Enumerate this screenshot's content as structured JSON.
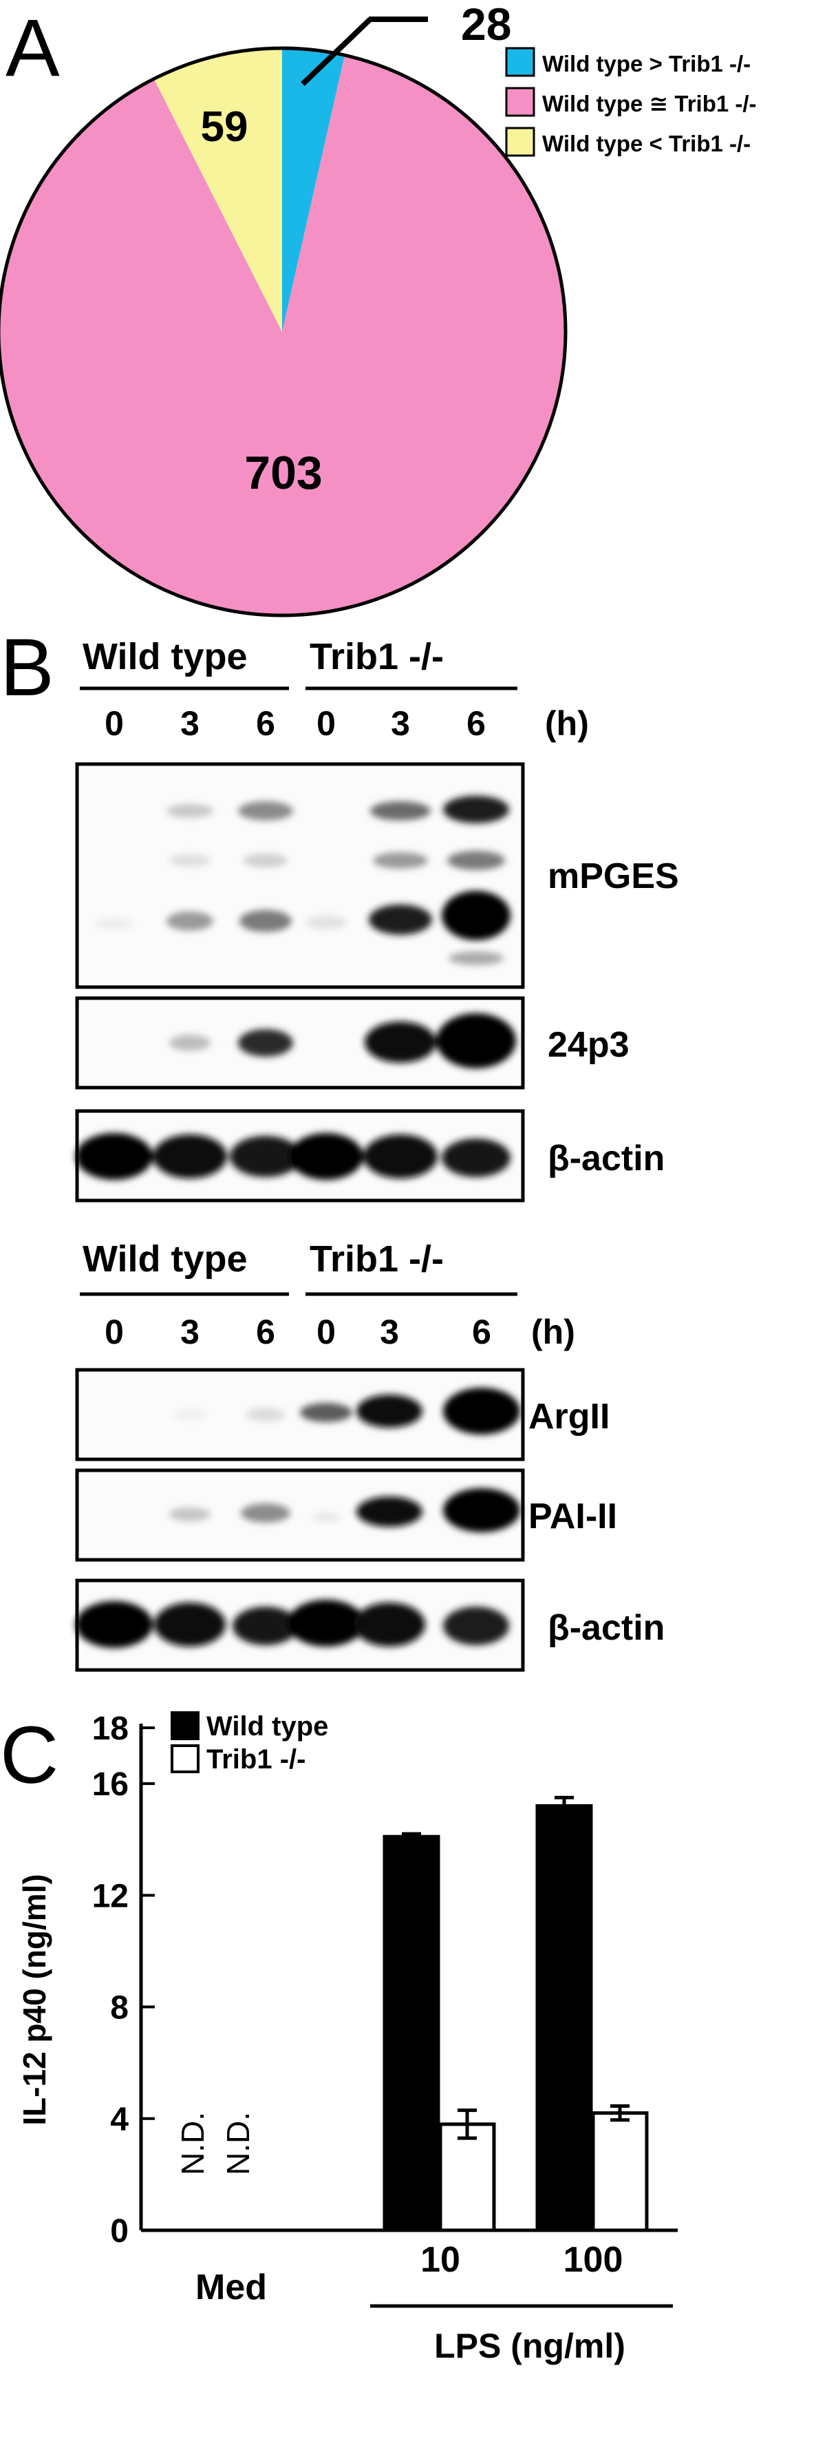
{
  "panel_a": {
    "letter": "A",
    "chart_data": {
      "type": "pie",
      "slices": [
        {
          "label": "Wild type > Trib1 -/-",
          "value": 28,
          "color": "#1ab8e8"
        },
        {
          "label": "Wild type ≅ Trib1 -/-",
          "value": 703,
          "color": "#f590c4"
        },
        {
          "label": "Wild type < Trib1 -/-",
          "value": 59,
          "color": "#f8f49c"
        }
      ],
      "data_labels": [
        "28",
        "703",
        "59"
      ],
      "legend_position": "top-right"
    }
  },
  "panel_b": {
    "letter": "B",
    "top": {
      "groups": [
        "Wild type",
        "Trib1 -/-"
      ],
      "timepoints": [
        "0",
        "3",
        "6",
        "0",
        "3",
        "6"
      ],
      "unit": "(h)",
      "blots": [
        "mPGES",
        "24p3",
        "β-actin"
      ]
    },
    "bottom": {
      "groups": [
        "Wild type",
        "Trib1 -/-"
      ],
      "timepoints": [
        "0",
        "3",
        "6",
        "0",
        "3",
        "6"
      ],
      "unit": "(h)",
      "blots": [
        "ArgII",
        "PAI-II",
        "β-actin"
      ]
    }
  },
  "panel_c": {
    "letter": "C",
    "chart_data": {
      "type": "bar",
      "categories": [
        "Med",
        "10",
        "100"
      ],
      "group_label": "LPS (ng/ml)",
      "ylabel": "IL-12 p40 (ng/ml)",
      "ylim": [
        0,
        18
      ],
      "yticks": [
        "0",
        "4",
        "8",
        "12",
        "16",
        "18"
      ],
      "series": [
        {
          "name": "Wild type",
          "color": "#000000",
          "values": [
            null,
            14.1,
            15.2
          ],
          "errors": [
            null,
            0.1,
            0.3
          ]
        },
        {
          "name": "Trib1 -/-",
          "color": "#ffffff",
          "values": [
            null,
            3.8,
            4.2
          ],
          "errors": [
            null,
            0.5,
            0.25
          ]
        }
      ],
      "annotations": [
        "N.D.",
        "N.D."
      ],
      "legend_position": "top-left"
    }
  }
}
